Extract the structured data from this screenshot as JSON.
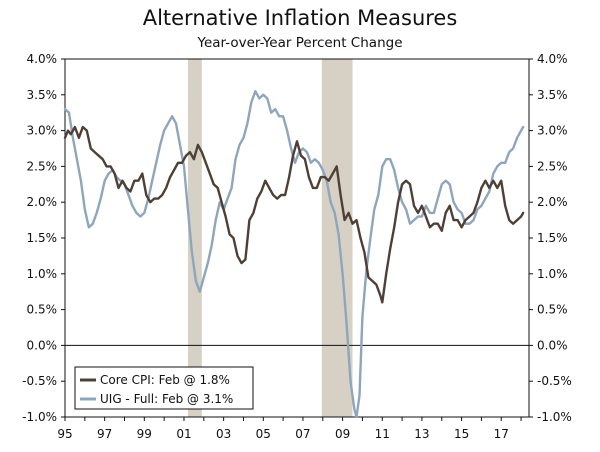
{
  "chart_data": {
    "type": "line",
    "title": "Alternative Inflation Measures",
    "subtitle": "Year-over-Year Percent Change",
    "xlabel": "",
    "ylabel": "",
    "x_range": [
      1995,
      2018.4
    ],
    "ylim": [
      -1.0,
      4.0
    ],
    "y_ticks": [
      -1.0,
      -0.5,
      0.0,
      0.5,
      1.0,
      1.5,
      2.0,
      2.5,
      3.0,
      3.5,
      4.0
    ],
    "y_tick_labels": [
      "-1.0%",
      "-0.5%",
      "0.0%",
      "0.5%",
      "1.0%",
      "1.5%",
      "2.0%",
      "2.5%",
      "3.0%",
      "3.5%",
      "4.0%"
    ],
    "x_tick_labels": [
      {
        "x": 1995,
        "label": "95"
      },
      {
        "x": 1997,
        "label": "97"
      },
      {
        "x": 1999,
        "label": "99"
      },
      {
        "x": 2001,
        "label": "01"
      },
      {
        "x": 2003,
        "label": "03"
      },
      {
        "x": 2005,
        "label": "05"
      },
      {
        "x": 2007,
        "label": "07"
      },
      {
        "x": 2009,
        "label": "09"
      },
      {
        "x": 2011,
        "label": "11"
      },
      {
        "x": 2013,
        "label": "13"
      },
      {
        "x": 2015,
        "label": "15"
      },
      {
        "x": 2017,
        "label": "17"
      }
    ],
    "recessions": [
      {
        "start": 2001.2,
        "end": 2001.9
      },
      {
        "start": 2007.95,
        "end": 2009.5
      }
    ],
    "legend_position": "bottom-left",
    "series": [
      {
        "name": "Core CPI: Feb @ 1.8%",
        "color": "#4e4037",
        "points": [
          [
            1995.0,
            2.9
          ],
          [
            1995.15,
            3.0
          ],
          [
            1995.3,
            2.95
          ],
          [
            1995.5,
            3.05
          ],
          [
            1995.7,
            2.9
          ],
          [
            1995.9,
            3.05
          ],
          [
            1996.1,
            3.0
          ],
          [
            1996.3,
            2.75
          ],
          [
            1996.5,
            2.7
          ],
          [
            1996.7,
            2.65
          ],
          [
            1996.9,
            2.6
          ],
          [
            1997.1,
            2.5
          ],
          [
            1997.3,
            2.5
          ],
          [
            1997.5,
            2.4
          ],
          [
            1997.7,
            2.2
          ],
          [
            1997.9,
            2.3
          ],
          [
            1998.1,
            2.2
          ],
          [
            1998.3,
            2.15
          ],
          [
            1998.5,
            2.3
          ],
          [
            1998.7,
            2.3
          ],
          [
            1998.9,
            2.4
          ],
          [
            1999.1,
            2.1
          ],
          [
            1999.3,
            2.0
          ],
          [
            1999.5,
            2.05
          ],
          [
            1999.7,
            2.05
          ],
          [
            1999.9,
            2.1
          ],
          [
            2000.1,
            2.2
          ],
          [
            2000.3,
            2.35
          ],
          [
            2000.5,
            2.45
          ],
          [
            2000.7,
            2.55
          ],
          [
            2000.9,
            2.55
          ],
          [
            2001.1,
            2.65
          ],
          [
            2001.3,
            2.7
          ],
          [
            2001.5,
            2.6
          ],
          [
            2001.7,
            2.8
          ],
          [
            2001.9,
            2.7
          ],
          [
            2002.1,
            2.55
          ],
          [
            2002.3,
            2.4
          ],
          [
            2002.5,
            2.25
          ],
          [
            2002.7,
            2.2
          ],
          [
            2002.9,
            2.0
          ],
          [
            2003.1,
            1.8
          ],
          [
            2003.3,
            1.55
          ],
          [
            2003.5,
            1.5
          ],
          [
            2003.7,
            1.25
          ],
          [
            2003.9,
            1.15
          ],
          [
            2004.1,
            1.2
          ],
          [
            2004.3,
            1.75
          ],
          [
            2004.5,
            1.85
          ],
          [
            2004.7,
            2.05
          ],
          [
            2004.9,
            2.15
          ],
          [
            2005.1,
            2.3
          ],
          [
            2005.3,
            2.2
          ],
          [
            2005.5,
            2.1
          ],
          [
            2005.7,
            2.05
          ],
          [
            2005.9,
            2.1
          ],
          [
            2006.1,
            2.1
          ],
          [
            2006.3,
            2.35
          ],
          [
            2006.5,
            2.65
          ],
          [
            2006.7,
            2.85
          ],
          [
            2006.9,
            2.65
          ],
          [
            2007.1,
            2.6
          ],
          [
            2007.3,
            2.35
          ],
          [
            2007.5,
            2.2
          ],
          [
            2007.7,
            2.2
          ],
          [
            2007.9,
            2.35
          ],
          [
            2008.1,
            2.35
          ],
          [
            2008.3,
            2.3
          ],
          [
            2008.5,
            2.4
          ],
          [
            2008.7,
            2.5
          ],
          [
            2008.9,
            2.1
          ],
          [
            2009.1,
            1.75
          ],
          [
            2009.3,
            1.85
          ],
          [
            2009.5,
            1.7
          ],
          [
            2009.7,
            1.75
          ],
          [
            2009.9,
            1.5
          ],
          [
            2010.1,
            1.3
          ],
          [
            2010.3,
            0.95
          ],
          [
            2010.5,
            0.9
          ],
          [
            2010.7,
            0.85
          ],
          [
            2010.9,
            0.7
          ],
          [
            2011.0,
            0.6
          ],
          [
            2011.2,
            1.0
          ],
          [
            2011.4,
            1.35
          ],
          [
            2011.6,
            1.65
          ],
          [
            2011.8,
            2.0
          ],
          [
            2012.0,
            2.25
          ],
          [
            2012.2,
            2.3
          ],
          [
            2012.4,
            2.25
          ],
          [
            2012.6,
            1.95
          ],
          [
            2012.8,
            1.85
          ],
          [
            2013.0,
            1.95
          ],
          [
            2013.2,
            1.8
          ],
          [
            2013.4,
            1.65
          ],
          [
            2013.6,
            1.7
          ],
          [
            2013.8,
            1.7
          ],
          [
            2014.0,
            1.6
          ],
          [
            2014.2,
            1.85
          ],
          [
            2014.4,
            1.95
          ],
          [
            2014.6,
            1.75
          ],
          [
            2014.8,
            1.75
          ],
          [
            2015.0,
            1.65
          ],
          [
            2015.2,
            1.75
          ],
          [
            2015.4,
            1.8
          ],
          [
            2015.6,
            1.85
          ],
          [
            2015.8,
            2.0
          ],
          [
            2016.0,
            2.2
          ],
          [
            2016.2,
            2.3
          ],
          [
            2016.4,
            2.2
          ],
          [
            2016.6,
            2.3
          ],
          [
            2016.8,
            2.2
          ],
          [
            2017.0,
            2.3
          ],
          [
            2017.2,
            1.95
          ],
          [
            2017.4,
            1.75
          ],
          [
            2017.6,
            1.7
          ],
          [
            2017.8,
            1.75
          ],
          [
            2018.0,
            1.8
          ],
          [
            2018.1,
            1.85
          ]
        ]
      },
      {
        "name": "UIG - Full: Feb @ 3.1%",
        "color": "#8ea6bd",
        "points": [
          [
            1995.0,
            3.3
          ],
          [
            1995.2,
            3.25
          ],
          [
            1995.4,
            2.9
          ],
          [
            1995.6,
            2.6
          ],
          [
            1995.8,
            2.3
          ],
          [
            1996.0,
            1.9
          ],
          [
            1996.2,
            1.65
          ],
          [
            1996.4,
            1.7
          ],
          [
            1996.6,
            1.85
          ],
          [
            1996.8,
            2.05
          ],
          [
            1997.0,
            2.3
          ],
          [
            1997.2,
            2.4
          ],
          [
            1997.4,
            2.45
          ],
          [
            1997.6,
            2.35
          ],
          [
            1997.8,
            2.3
          ],
          [
            1998.0,
            2.25
          ],
          [
            1998.2,
            2.1
          ],
          [
            1998.4,
            1.95
          ],
          [
            1998.6,
            1.85
          ],
          [
            1998.8,
            1.8
          ],
          [
            1999.0,
            1.85
          ],
          [
            1999.2,
            2.05
          ],
          [
            1999.4,
            2.3
          ],
          [
            1999.6,
            2.55
          ],
          [
            1999.8,
            2.8
          ],
          [
            2000.0,
            3.0
          ],
          [
            2000.2,
            3.1
          ],
          [
            2000.4,
            3.2
          ],
          [
            2000.6,
            3.1
          ],
          [
            2000.8,
            2.8
          ],
          [
            2001.0,
            2.5
          ],
          [
            2001.2,
            1.9
          ],
          [
            2001.4,
            1.3
          ],
          [
            2001.6,
            0.9
          ],
          [
            2001.8,
            0.75
          ],
          [
            2002.0,
            0.95
          ],
          [
            2002.2,
            1.15
          ],
          [
            2002.4,
            1.4
          ],
          [
            2002.6,
            1.75
          ],
          [
            2002.8,
            2.0
          ],
          [
            2003.0,
            1.9
          ],
          [
            2003.2,
            2.05
          ],
          [
            2003.4,
            2.2
          ],
          [
            2003.6,
            2.6
          ],
          [
            2003.8,
            2.8
          ],
          [
            2004.0,
            2.9
          ],
          [
            2004.2,
            3.1
          ],
          [
            2004.4,
            3.4
          ],
          [
            2004.6,
            3.55
          ],
          [
            2004.8,
            3.45
          ],
          [
            2005.0,
            3.5
          ],
          [
            2005.2,
            3.45
          ],
          [
            2005.4,
            3.25
          ],
          [
            2005.6,
            3.3
          ],
          [
            2005.8,
            3.2
          ],
          [
            2006.0,
            3.2
          ],
          [
            2006.2,
            3.0
          ],
          [
            2006.4,
            2.75
          ],
          [
            2006.6,
            2.55
          ],
          [
            2006.8,
            2.7
          ],
          [
            2007.0,
            2.75
          ],
          [
            2007.2,
            2.7
          ],
          [
            2007.4,
            2.55
          ],
          [
            2007.6,
            2.6
          ],
          [
            2007.8,
            2.55
          ],
          [
            2008.0,
            2.45
          ],
          [
            2008.2,
            2.3
          ],
          [
            2008.4,
            2.0
          ],
          [
            2008.6,
            1.85
          ],
          [
            2008.8,
            1.55
          ],
          [
            2009.0,
            1.0
          ],
          [
            2009.2,
            0.3
          ],
          [
            2009.4,
            -0.5
          ],
          [
            2009.6,
            -0.9
          ],
          [
            2009.7,
            -1.0
          ],
          [
            2009.85,
            -0.7
          ],
          [
            2010.0,
            0.4
          ],
          [
            2010.2,
            1.05
          ],
          [
            2010.4,
            1.5
          ],
          [
            2010.6,
            1.9
          ],
          [
            2010.8,
            2.1
          ],
          [
            2011.0,
            2.5
          ],
          [
            2011.2,
            2.6
          ],
          [
            2011.4,
            2.6
          ],
          [
            2011.6,
            2.45
          ],
          [
            2011.8,
            2.2
          ],
          [
            2012.0,
            2.0
          ],
          [
            2012.2,
            1.9
          ],
          [
            2012.4,
            1.7
          ],
          [
            2012.6,
            1.75
          ],
          [
            2012.8,
            1.8
          ],
          [
            2013.0,
            1.8
          ],
          [
            2013.2,
            1.95
          ],
          [
            2013.4,
            1.85
          ],
          [
            2013.6,
            1.85
          ],
          [
            2013.8,
            2.05
          ],
          [
            2014.0,
            2.25
          ],
          [
            2014.2,
            2.3
          ],
          [
            2014.4,
            2.25
          ],
          [
            2014.6,
            2.0
          ],
          [
            2014.8,
            1.9
          ],
          [
            2015.0,
            1.85
          ],
          [
            2015.2,
            1.7
          ],
          [
            2015.4,
            1.7
          ],
          [
            2015.6,
            1.75
          ],
          [
            2015.8,
            1.9
          ],
          [
            2016.0,
            1.95
          ],
          [
            2016.2,
            2.05
          ],
          [
            2016.4,
            2.15
          ],
          [
            2016.6,
            2.4
          ],
          [
            2016.8,
            2.5
          ],
          [
            2017.0,
            2.55
          ],
          [
            2017.2,
            2.55
          ],
          [
            2017.4,
            2.7
          ],
          [
            2017.6,
            2.75
          ],
          [
            2017.8,
            2.9
          ],
          [
            2018.0,
            3.0
          ],
          [
            2018.1,
            3.05
          ]
        ]
      }
    ]
  }
}
